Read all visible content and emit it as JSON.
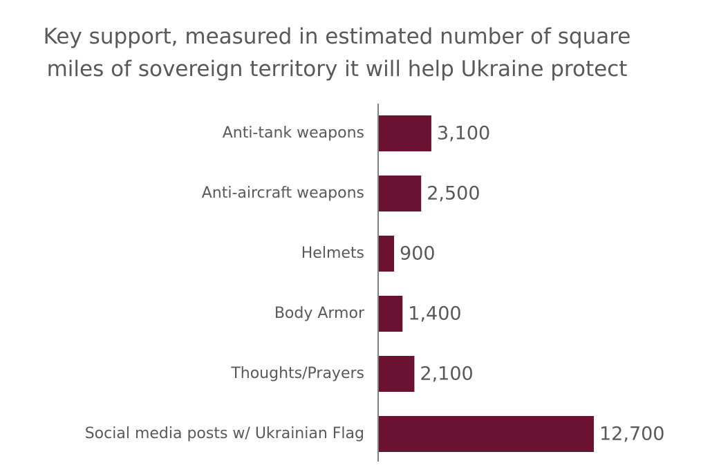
{
  "chart_data": {
    "type": "bar",
    "orientation": "horizontal",
    "title": "Key support, measured in estimated number of square\nmiles of sovereign territory it will help Ukraine protect",
    "categories": [
      "Anti-tank weapons",
      "Anti-aircraft weapons",
      "Helmets",
      "Body Armor",
      "Thoughts/Prayers",
      "Social media posts w/ Ukrainian Flag"
    ],
    "values": [
      3100,
      2500,
      900,
      1400,
      2100,
      12700
    ],
    "value_labels": [
      "3,100",
      "2,500",
      "900",
      "1,400",
      "2,100",
      "12,700"
    ],
    "color": "#6b1131"
  }
}
